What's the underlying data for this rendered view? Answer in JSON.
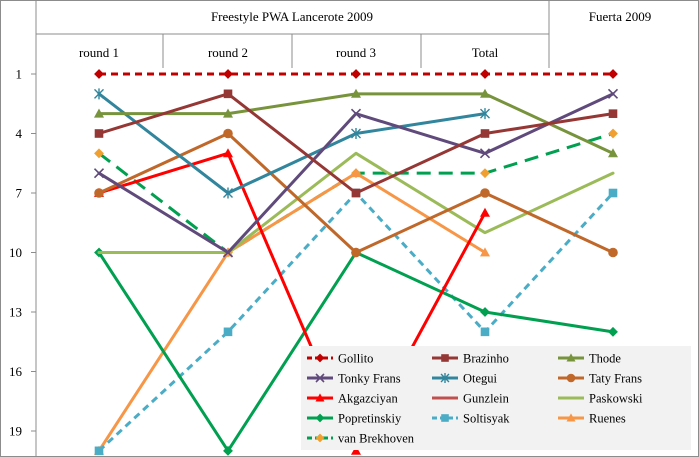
{
  "chart_data": {
    "type": "line",
    "title": "",
    "xlabel": "",
    "ylabel": "",
    "group_headers": [
      "Freestyle PWA Lancerote 2009",
      "Fuerta 2009"
    ],
    "categories": [
      "round 1",
      "round 2",
      "round 3",
      "Total",
      ""
    ],
    "y_reversed": true,
    "ylim": [
      0,
      20
    ],
    "y_ticks": [
      1,
      4,
      7,
      10,
      13,
      16,
      19
    ],
    "grid": false,
    "legend_position": "bottom-right",
    "series": [
      {
        "name": "Gollito",
        "values": [
          1,
          1,
          1,
          1,
          1
        ],
        "color": "#C00000",
        "marker": "diamond",
        "dash": [
          7,
          5
        ]
      },
      {
        "name": "Brazinho",
        "values": [
          4,
          2,
          7,
          4,
          3
        ],
        "color": "#953735",
        "marker": "square",
        "dash": null
      },
      {
        "name": "Thode",
        "values": [
          3,
          3,
          2,
          2,
          5
        ],
        "color": "#77933C",
        "marker": "triangle",
        "dash": null
      },
      {
        "name": "Tonky Frans",
        "values": [
          6,
          10,
          3,
          5,
          2
        ],
        "color": "#604A7B",
        "marker": "x",
        "dash": null
      },
      {
        "name": "Otegui",
        "values": [
          2,
          7,
          4,
          3,
          null
        ],
        "color": "#31859C",
        "marker": "star",
        "dash": null
      },
      {
        "name": "Taty Frans",
        "values": [
          7,
          4,
          10,
          7,
          10
        ],
        "color": "#C0682A",
        "marker": "circle",
        "dash": null
      },
      {
        "name": "Akgazciyan",
        "values": [
          7,
          5,
          20,
          8,
          null
        ],
        "color": "#FF0000",
        "marker": "triangle",
        "dash": null
      },
      {
        "name": "Gunzlein",
        "values": [
          null,
          null,
          null,
          null,
          null
        ],
        "color": "#C0504D",
        "marker": "none",
        "dash": null
      },
      {
        "name": "Paskowski",
        "values": [
          10,
          10,
          5,
          9,
          6
        ],
        "color": "#9BBB59",
        "marker": "none",
        "dash": null
      },
      {
        "name": "Popretinskiy",
        "values": [
          10,
          20,
          10,
          13,
          14
        ],
        "color": "#00A050",
        "marker": "diamond",
        "dash": null
      },
      {
        "name": "Soltisyak",
        "values": [
          20,
          14,
          7,
          14,
          7
        ],
        "color": "#4BACC6",
        "marker": "square",
        "dash": [
          7,
          5
        ]
      },
      {
        "name": "Ruenes",
        "values": [
          20,
          10,
          6,
          10,
          null
        ],
        "color": "#F79646",
        "marker": "triangle",
        "dash": null
      },
      {
        "name": "van Brekhoven",
        "values": [
          5,
          10,
          6,
          6,
          4
        ],
        "color": "#00A050",
        "marker": "diamond",
        "dash": [
          14,
          8
        ],
        "marker_color": "#F0A030"
      }
    ]
  }
}
